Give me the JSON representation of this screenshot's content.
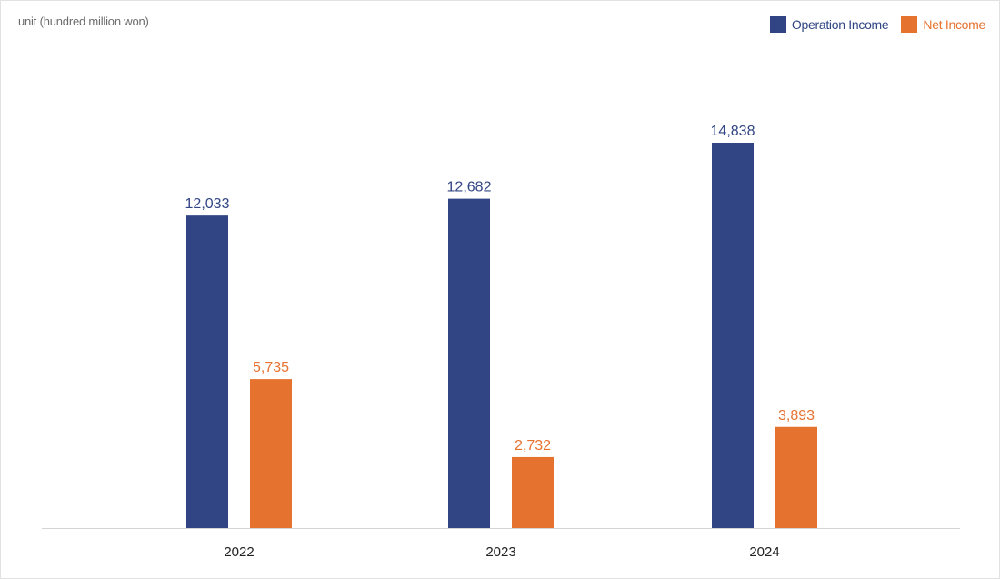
{
  "unit_label": "unit (hundred million won)",
  "colors": {
    "operation": "#314584",
    "net": "#e67230",
    "baseline": "#d4d4d4"
  },
  "chart_data": {
    "type": "bar",
    "title": "",
    "xlabel": "",
    "ylabel": "",
    "categories": [
      "2022",
      "2023",
      "2024"
    ],
    "series": [
      {
        "name": "Operation Income",
        "values": [
          12033,
          12682,
          14838
        ]
      },
      {
        "name": "Net Income",
        "values": [
          5735,
          2732,
          3893
        ]
      }
    ],
    "value_labels": [
      [
        "12,033",
        "12,682",
        "14,838"
      ],
      [
        "5,735",
        "2,732",
        "3,893"
      ]
    ],
    "ylim": [
      0,
      17500
    ],
    "grid": false,
    "legend_position": "top-right"
  }
}
